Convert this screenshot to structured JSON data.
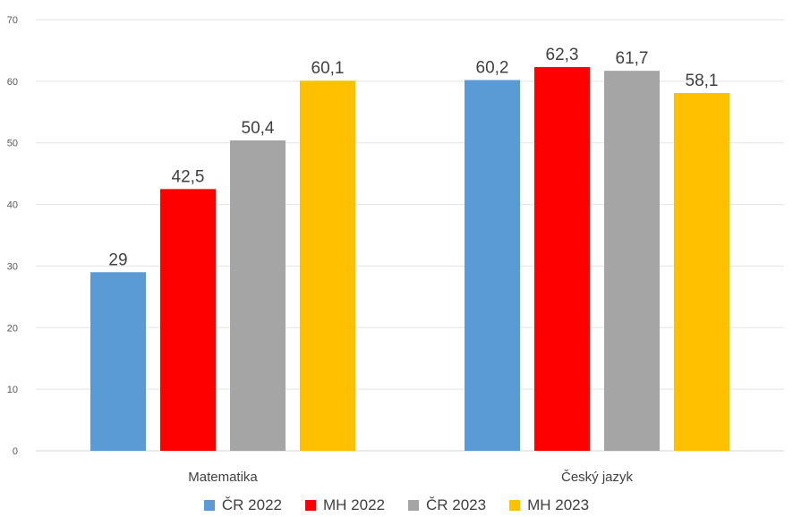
{
  "chart_data": {
    "type": "bar",
    "categories": [
      "Matematika",
      "Český jazyk"
    ],
    "series": [
      {
        "name": "ČR 2022",
        "values": [
          29,
          60.2
        ],
        "labels": [
          "29",
          "60,2"
        ],
        "color": "#5b9bd5"
      },
      {
        "name": "MH 2022",
        "values": [
          42.5,
          62.3
        ],
        "labels": [
          "42,5",
          "62,3"
        ],
        "color": "#ff0000"
      },
      {
        "name": "ČR 2023",
        "values": [
          50.4,
          61.7
        ],
        "labels": [
          "50,4",
          "61,7"
        ],
        "color": "#a5a5a5"
      },
      {
        "name": "MH 2023",
        "values": [
          60.1,
          58.1
        ],
        "labels": [
          "60,1",
          "58,1"
        ],
        "color": "#ffc000"
      }
    ],
    "title": "",
    "xlabel": "",
    "ylabel": "",
    "ylim": [
      0,
      70
    ],
    "yticks": [
      0,
      10,
      20,
      30,
      40,
      50,
      60,
      70
    ],
    "grid": true,
    "legend_position": "bottom"
  }
}
